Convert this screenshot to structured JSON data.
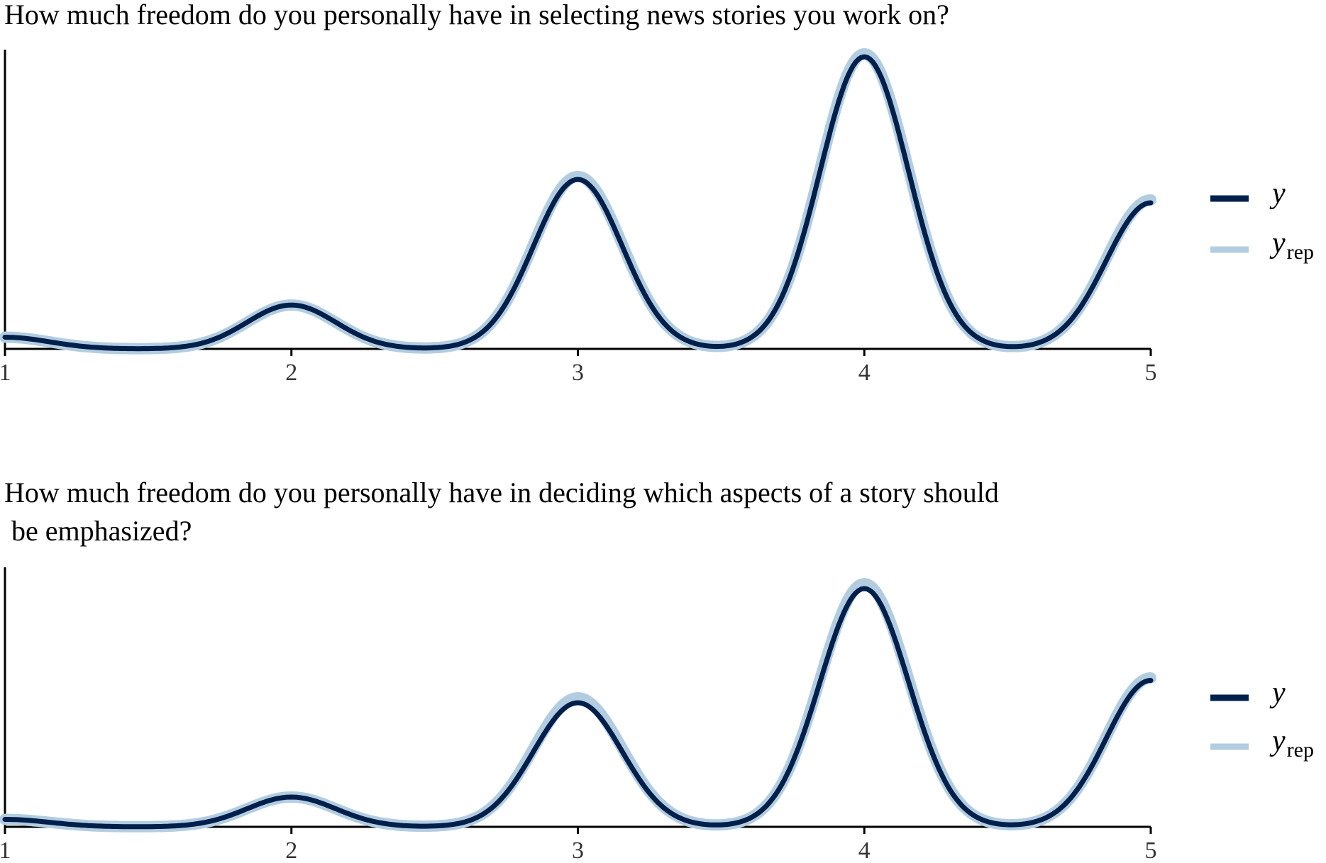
{
  "colors": {
    "y": "#011f4b",
    "yrep": "#b3cde0",
    "axis": "#000000"
  },
  "chart_data": [
    {
      "type": "line",
      "title": "How much freedom do you personally have in selecting news stories you work on?",
      "xlim": [
        1,
        5
      ],
      "x_ticks": [
        "1",
        "2",
        "3",
        "4",
        "5"
      ],
      "y_axis_labels": "none",
      "series": [
        {
          "name": "y",
          "values": [
            {
              "x": 1,
              "y": 0.04
            },
            {
              "x": 2,
              "y": 0.15
            },
            {
              "x": 3,
              "y": 0.58
            },
            {
              "x": 4,
              "y": 1.0
            },
            {
              "x": 5,
              "y": 0.5
            }
          ]
        },
        {
          "name": "yrep",
          "values": [
            {
              "x": 1,
              "y": 0.04
            },
            {
              "x": 2,
              "y": 0.15
            },
            {
              "x": 3,
              "y": 0.59
            },
            {
              "x": 4,
              "y": 1.01
            },
            {
              "x": 5,
              "y": 0.51
            }
          ]
        }
      ],
      "legend": {
        "position": "right",
        "entries": [
          "y",
          "yrep"
        ]
      }
    },
    {
      "type": "line",
      "title": "How much freedom do you personally have in deciding which aspects of a story should\n be emphasized?",
      "xlim": [
        1,
        5
      ],
      "x_ticks": [
        "1",
        "2",
        "3",
        "4",
        "5"
      ],
      "y_axis_labels": "none",
      "series": [
        {
          "name": "y",
          "values": [
            {
              "x": 1,
              "y": 0.03
            },
            {
              "x": 2,
              "y": 0.12
            },
            {
              "x": 3,
              "y": 0.5
            },
            {
              "x": 4,
              "y": 0.96
            },
            {
              "x": 5,
              "y": 0.59
            }
          ]
        },
        {
          "name": "yrep",
          "values": [
            {
              "x": 1,
              "y": 0.03
            },
            {
              "x": 2,
              "y": 0.12
            },
            {
              "x": 3,
              "y": 0.52
            },
            {
              "x": 4,
              "y": 0.98
            },
            {
              "x": 5,
              "y": 0.6
            }
          ]
        }
      ],
      "legend": {
        "position": "right",
        "entries": [
          "y",
          "yrep"
        ]
      }
    }
  ],
  "legend_labels": {
    "y": "y",
    "yrep_main": "y",
    "yrep_sub": "rep"
  }
}
